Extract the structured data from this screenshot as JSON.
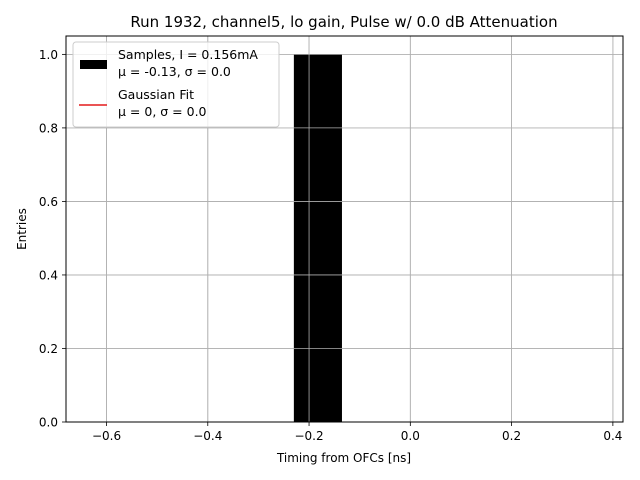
{
  "chart_data": {
    "type": "bar",
    "title": "Run 1932, channel5, lo gain, Pulse w/ 0.0 dB Attenuation",
    "xlabel": "Timing from OFCs [ns]",
    "ylabel": "Entries",
    "xlim": [
      -0.68,
      0.42
    ],
    "ylim": [
      0,
      1.05
    ],
    "xticks": [
      -0.6,
      -0.4,
      -0.2,
      0.0,
      0.2,
      0.4
    ],
    "xtick_labels": [
      "−0.6",
      "−0.4",
      "−0.2",
      "0.0",
      "0.2",
      "0.4"
    ],
    "yticks": [
      0.0,
      0.2,
      0.4,
      0.6,
      0.8,
      1.0
    ],
    "ytick_labels": [
      "0.0",
      "0.2",
      "0.4",
      "0.6",
      "0.8",
      "1.0"
    ],
    "grid": true,
    "legend_position": "top-left",
    "bins": [
      {
        "x_start": -0.23,
        "x_end": -0.135,
        "value": 1.0
      }
    ],
    "fit_line": {
      "x": [],
      "y": []
    },
    "series": [
      {
        "legend_line1": "Samples, I = 0.156mA",
        "legend_line2": "μ = -0.13, σ = 0.0",
        "color": "#000000",
        "kind": "histogram"
      },
      {
        "legend_line1": "Gaussian Fit",
        "legend_line2": "μ = 0, σ = 0.0",
        "color": "#e41a1c",
        "kind": "line"
      }
    ]
  }
}
